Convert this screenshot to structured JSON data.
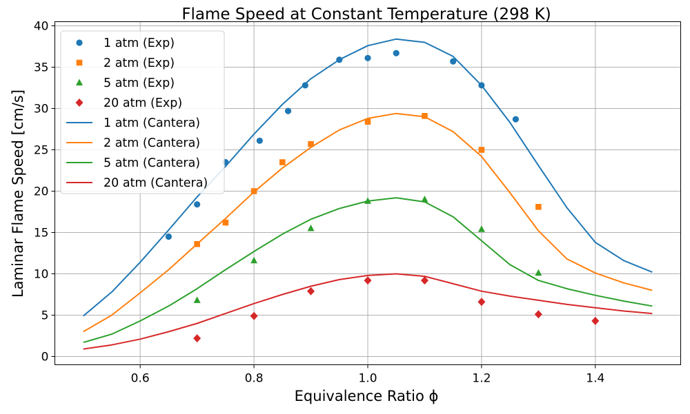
{
  "chart_data": {
    "type": "line",
    "title": "Flame Speed at Constant Temperature (298 K)",
    "xlabel": "Equivalence Ratio ϕ",
    "ylabel": "Laminar Flame Speed [cm/s]",
    "xlim": [
      0.45,
      1.55
    ],
    "ylim": [
      -1,
      40.5
    ],
    "xticks": [
      0.6,
      0.8,
      1.0,
      1.2,
      1.4
    ],
    "xtick_labels": [
      "0.6",
      "0.8",
      "1.0",
      "1.2",
      "1.4"
    ],
    "yticks": [
      0,
      5,
      10,
      15,
      20,
      25,
      30,
      35,
      40
    ],
    "ytick_labels": [
      "0",
      "5",
      "10",
      "15",
      "20",
      "25",
      "30",
      "35",
      "40"
    ],
    "grid": true,
    "legend_position": "top-left",
    "experimental": [
      {
        "name": "1 atm (Exp)",
        "color": "#1f77b4",
        "marker": "circle",
        "x": [
          0.65,
          0.7,
          0.75,
          0.81,
          0.86,
          0.89,
          0.95,
          1.0,
          1.05,
          1.15,
          1.2,
          1.26
        ],
        "y": [
          14.5,
          18.4,
          23.5,
          26.1,
          29.7,
          32.8,
          35.9,
          36.1,
          36.7,
          35.7,
          32.8,
          28.7
        ]
      },
      {
        "name": "2 atm (Exp)",
        "color": "#ff7f0e",
        "marker": "square",
        "x": [
          0.7,
          0.75,
          0.8,
          0.85,
          0.9,
          1.0,
          1.1,
          1.2,
          1.3
        ],
        "y": [
          13.6,
          16.2,
          20.0,
          23.5,
          25.7,
          28.4,
          29.1,
          25.0,
          18.1
        ]
      },
      {
        "name": "5 atm (Exp)",
        "color": "#2ca02c",
        "marker": "triangle",
        "x": [
          0.7,
          0.8,
          0.9,
          1.0,
          1.1,
          1.2,
          1.3
        ],
        "y": [
          6.8,
          11.6,
          15.5,
          18.8,
          19.0,
          15.4,
          10.1
        ]
      },
      {
        "name": "20 atm (Exp)",
        "color": "#d62728",
        "marker": "diamond",
        "x": [
          0.7,
          0.8,
          0.9,
          1.0,
          1.1,
          1.2,
          1.3,
          1.4
        ],
        "y": [
          2.2,
          4.9,
          7.9,
          9.2,
          9.2,
          6.6,
          5.1,
          4.3
        ]
      }
    ],
    "model": [
      {
        "name": "1 atm (Cantera)",
        "color": "#1f77b4",
        "x": [
          0.5,
          0.55,
          0.6,
          0.65,
          0.7,
          0.75,
          0.8,
          0.85,
          0.9,
          0.95,
          1.0,
          1.05,
          1.1,
          1.15,
          1.2,
          1.25,
          1.3,
          1.35,
          1.4,
          1.45,
          1.5
        ],
        "y": [
          4.9,
          7.8,
          11.4,
          15.3,
          19.3,
          23.0,
          26.9,
          30.5,
          33.6,
          35.9,
          37.6,
          38.4,
          38.0,
          36.3,
          32.8,
          28.3,
          23.1,
          18.0,
          13.8,
          11.6,
          10.2
        ]
      },
      {
        "name": "2 atm (Cantera)",
        "color": "#ff7f0e",
        "x": [
          0.5,
          0.55,
          0.6,
          0.65,
          0.7,
          0.75,
          0.8,
          0.85,
          0.9,
          0.95,
          1.0,
          1.05,
          1.1,
          1.15,
          1.2,
          1.25,
          1.3,
          1.35,
          1.4,
          1.45,
          1.5
        ],
        "y": [
          3.0,
          5.0,
          7.7,
          10.5,
          13.6,
          16.7,
          19.9,
          22.8,
          25.3,
          27.4,
          28.8,
          29.4,
          29.0,
          27.2,
          24.2,
          19.8,
          15.2,
          11.8,
          10.1,
          8.9,
          8.0
        ]
      },
      {
        "name": "5 atm (Cantera)",
        "color": "#2ca02c",
        "x": [
          0.5,
          0.55,
          0.6,
          0.65,
          0.7,
          0.75,
          0.8,
          0.85,
          0.9,
          0.95,
          1.0,
          1.05,
          1.1,
          1.15,
          1.2,
          1.25,
          1.3,
          1.35,
          1.4,
          1.45,
          1.5
        ],
        "y": [
          1.7,
          2.7,
          4.3,
          6.1,
          8.2,
          10.5,
          12.7,
          14.8,
          16.6,
          17.9,
          18.8,
          19.2,
          18.7,
          16.9,
          14.0,
          11.1,
          9.2,
          8.2,
          7.4,
          6.7,
          6.1
        ]
      },
      {
        "name": "20 atm (Cantera)",
        "color": "#d62728",
        "x": [
          0.5,
          0.55,
          0.6,
          0.65,
          0.7,
          0.75,
          0.8,
          0.85,
          0.9,
          0.95,
          1.0,
          1.05,
          1.1,
          1.15,
          1.2,
          1.25,
          1.3,
          1.35,
          1.4,
          1.45,
          1.5
        ],
        "y": [
          0.9,
          1.4,
          2.1,
          3.0,
          4.0,
          5.2,
          6.4,
          7.5,
          8.5,
          9.3,
          9.8,
          10.0,
          9.7,
          8.8,
          7.9,
          7.3,
          6.8,
          6.3,
          5.9,
          5.5,
          5.2
        ]
      }
    ]
  }
}
